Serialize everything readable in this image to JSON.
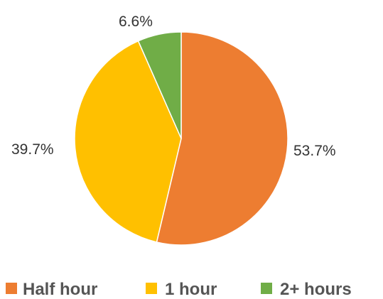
{
  "chart_data": {
    "type": "pie",
    "categories": [
      "Half hour",
      "1 hour",
      "2+ hours"
    ],
    "values": [
      53.7,
      39.7,
      6.6
    ],
    "data_labels": [
      "53.7%",
      "39.7%",
      "6.6%"
    ],
    "colors": [
      "#ED7D31",
      "#FFC000",
      "#70AD47"
    ],
    "start_angle_deg": 0,
    "direction": "clockwise",
    "legend": {
      "position": "bottom",
      "entries": [
        "Half hour",
        "1 hour",
        "2+ hours"
      ]
    }
  }
}
